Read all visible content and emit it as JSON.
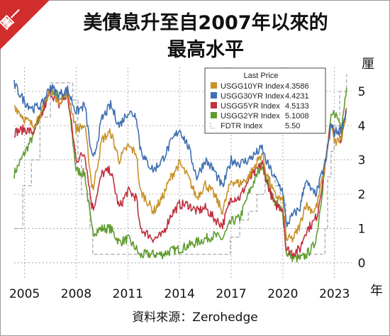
{
  "badge": "圖一",
  "chart_data": {
    "type": "line",
    "title_lines": [
      "美債息升至自2007年以來的",
      "最高水平"
    ],
    "x_unit": "年",
    "y_unit": "厘",
    "xlim": [
      2004.4,
      2024.0
    ],
    "ylim": [
      -0.5,
      5.7
    ],
    "x_ticks": [
      "2005",
      "2008",
      "2011",
      "2014",
      "2017",
      "2020",
      "2023"
    ],
    "y_ticks": [
      "0",
      "1",
      "2",
      "3",
      "4",
      "5"
    ],
    "grid": true,
    "legend_placement": "top-right",
    "legend": {
      "title": "Last Price",
      "entries": [
        {
          "name": "USGG10YR Index",
          "value": "4.3586",
          "color": "#c8922b"
        },
        {
          "name": "USGG30YR Index",
          "value": "4.4231",
          "color": "#3f6fb0"
        },
        {
          "name": "USGG5YR Index",
          "value": "4.5133",
          "color": "#c0303e"
        },
        {
          "name": "USGG2YR Index",
          "value": "5.1008",
          "color": "#5e9c2f"
        },
        {
          "name": "FDTR Index",
          "value": "5.50",
          "color": "#b0b0b0"
        }
      ]
    },
    "series": [
      {
        "name": "USGG30YR Index",
        "color": "#3f6fb0",
        "dash": false,
        "x": [
          2004.4,
          2005.0,
          2005.5,
          2006.0,
          2006.5,
          2007.0,
          2007.5,
          2008.0,
          2008.5,
          2008.9,
          2009.0,
          2009.5,
          2010.0,
          2010.5,
          2011.0,
          2011.5,
          2011.7,
          2012.0,
          2012.5,
          2013.0,
          2013.5,
          2014.0,
          2014.5,
          2015.0,
          2015.5,
          2016.0,
          2016.5,
          2017.0,
          2017.5,
          2018.0,
          2018.8,
          2019.0,
          2019.5,
          2020.0,
          2020.2,
          2020.6,
          2021.0,
          2021.3,
          2021.8,
          2022.0,
          2022.5,
          2022.8,
          2023.0,
          2023.4,
          2023.7
        ],
        "values": [
          5.2,
          4.7,
          4.5,
          4.6,
          5.15,
          4.9,
          5.05,
          4.4,
          4.6,
          3.1,
          3.0,
          4.2,
          4.6,
          4.0,
          4.4,
          4.3,
          3.4,
          3.0,
          2.7,
          3.0,
          3.5,
          3.9,
          3.4,
          2.5,
          3.0,
          2.7,
          2.2,
          3.0,
          2.9,
          3.0,
          3.35,
          3.0,
          2.5,
          2.1,
          1.1,
          1.4,
          1.6,
          2.4,
          2.0,
          2.1,
          3.0,
          4.0,
          3.8,
          3.9,
          4.42
        ]
      },
      {
        "name": "USGG10YR Index",
        "color": "#c8922b",
        "dash": false,
        "x": [
          2004.4,
          2005.0,
          2005.5,
          2006.0,
          2006.5,
          2007.0,
          2007.5,
          2008.0,
          2008.5,
          2008.9,
          2009.0,
          2009.5,
          2010.0,
          2010.5,
          2011.0,
          2011.5,
          2011.7,
          2012.0,
          2012.5,
          2013.0,
          2013.5,
          2014.0,
          2014.5,
          2015.0,
          2015.5,
          2016.0,
          2016.5,
          2017.0,
          2017.5,
          2018.0,
          2018.8,
          2019.0,
          2019.5,
          2020.0,
          2020.2,
          2020.6,
          2021.0,
          2021.3,
          2021.8,
          2022.0,
          2022.5,
          2022.8,
          2023.0,
          2023.4,
          2023.7
        ],
        "values": [
          4.6,
          4.2,
          4.0,
          4.4,
          5.1,
          4.7,
          5.0,
          3.9,
          4.0,
          2.3,
          2.2,
          3.6,
          3.8,
          3.0,
          3.4,
          3.2,
          2.1,
          1.9,
          1.5,
          1.9,
          2.5,
          2.9,
          2.5,
          1.9,
          2.3,
          2.0,
          1.5,
          2.4,
          2.3,
          2.5,
          3.2,
          2.7,
          2.0,
          1.8,
          0.7,
          0.7,
          1.1,
          1.7,
          1.5,
          1.7,
          3.0,
          4.0,
          3.5,
          3.6,
          4.36
        ]
      },
      {
        "name": "USGG5YR Index",
        "color": "#c0303e",
        "dash": false,
        "x": [
          2004.4,
          2005.0,
          2005.5,
          2006.0,
          2006.5,
          2007.0,
          2007.5,
          2008.0,
          2008.5,
          2008.9,
          2009.0,
          2009.5,
          2010.0,
          2010.5,
          2011.0,
          2011.5,
          2011.7,
          2012.0,
          2012.5,
          2013.0,
          2013.5,
          2014.0,
          2014.5,
          2015.0,
          2015.5,
          2016.0,
          2016.5,
          2017.0,
          2017.5,
          2018.0,
          2018.8,
          2019.0,
          2019.5,
          2020.0,
          2020.2,
          2020.6,
          2021.0,
          2021.3,
          2021.8,
          2022.0,
          2022.5,
          2022.8,
          2023.0,
          2023.4,
          2023.7
        ],
        "values": [
          3.8,
          3.9,
          3.8,
          4.3,
          5.0,
          4.6,
          4.9,
          3.0,
          3.2,
          1.7,
          1.6,
          2.6,
          2.7,
          1.6,
          2.1,
          1.9,
          1.0,
          0.9,
          0.7,
          0.8,
          1.4,
          1.7,
          1.7,
          1.5,
          1.6,
          1.3,
          1.1,
          1.9,
          1.9,
          2.4,
          2.9,
          2.5,
          1.7,
          1.6,
          0.4,
          0.3,
          0.4,
          0.9,
          1.2,
          1.4,
          3.0,
          4.1,
          3.9,
          3.6,
          4.51
        ]
      },
      {
        "name": "USGG2YR Index",
        "color": "#5e9c2f",
        "dash": false,
        "x": [
          2004.4,
          2005.0,
          2005.5,
          2006.0,
          2006.5,
          2007.0,
          2007.5,
          2008.0,
          2008.5,
          2008.9,
          2009.0,
          2009.5,
          2010.0,
          2010.5,
          2011.0,
          2011.5,
          2011.7,
          2012.0,
          2012.5,
          2013.0,
          2013.5,
          2014.0,
          2014.5,
          2015.0,
          2015.5,
          2016.0,
          2016.5,
          2017.0,
          2017.5,
          2018.0,
          2018.8,
          2019.0,
          2019.5,
          2020.0,
          2020.2,
          2020.6,
          2021.0,
          2021.3,
          2021.8,
          2022.0,
          2022.5,
          2022.8,
          2023.0,
          2023.4,
          2023.7
        ],
        "values": [
          2.6,
          3.2,
          3.7,
          4.4,
          5.1,
          4.8,
          4.9,
          2.7,
          2.6,
          1.0,
          0.9,
          1.0,
          1.0,
          0.6,
          0.7,
          0.4,
          0.2,
          0.25,
          0.25,
          0.25,
          0.35,
          0.4,
          0.5,
          0.6,
          0.7,
          0.8,
          0.7,
          1.2,
          1.3,
          2.0,
          2.9,
          2.5,
          1.8,
          1.5,
          0.3,
          0.15,
          0.12,
          0.2,
          0.5,
          0.9,
          3.0,
          4.2,
          4.4,
          4.0,
          5.1
        ]
      },
      {
        "name": "FDTR Index",
        "color": "#b0b0b0",
        "dash": true,
        "x": [
          2004.4,
          2004.9,
          2005.4,
          2005.9,
          2006.5,
          2007.6,
          2007.8,
          2008.1,
          2008.3,
          2008.8,
          2008.96,
          2015.95,
          2016.95,
          2017.5,
          2018.0,
          2018.5,
          2018.97,
          2019.55,
          2019.85,
          2020.17,
          2022.2,
          2022.45,
          2022.6,
          2022.8,
          2022.97,
          2023.3,
          2023.7
        ],
        "values": [
          1.0,
          2.25,
          3.0,
          4.25,
          5.25,
          5.25,
          4.75,
          3.0,
          2.0,
          1.0,
          0.25,
          0.25,
          0.75,
          1.25,
          1.5,
          2.0,
          2.5,
          2.25,
          1.75,
          0.25,
          0.25,
          1.0,
          2.5,
          3.25,
          4.0,
          5.0,
          5.5
        ]
      }
    ]
  },
  "source": "資料來源：Zerohedge"
}
